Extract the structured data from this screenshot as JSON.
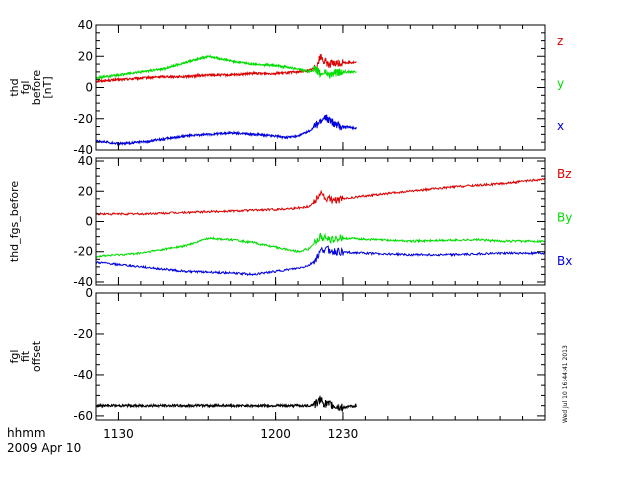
{
  "footer": {
    "time_format": "hhmm",
    "date": "2009 Apr 10",
    "stamp": "Wed Jul 10 16:44:41 2013"
  },
  "chart_data": [
    {
      "type": "line",
      "panel": "thd_fgl_before",
      "ylabel_lines": [
        "thd",
        "fgl",
        "before",
        "[nT]"
      ],
      "ylim": [
        -40,
        40
      ],
      "yticks": [
        40,
        20,
        0,
        -20,
        -40
      ],
      "xlim": [
        1120,
        1320
      ],
      "xticks": [
        1130,
        1200,
        1230
      ],
      "series": [
        {
          "name": "z",
          "color": "#dd0000",
          "x": [
            1120,
            1130,
            1140,
            1150,
            1160,
            1170,
            1180,
            1190,
            1200,
            1210,
            1215,
            1218,
            1220,
            1222,
            1224,
            1226,
            1230,
            1236
          ],
          "y": [
            4,
            5,
            6,
            7,
            7,
            8,
            8,
            9,
            9,
            10,
            11,
            13,
            20,
            16,
            15,
            15,
            16,
            16
          ]
        },
        {
          "name": "y",
          "color": "#00dd00",
          "x": [
            1120,
            1130,
            1140,
            1150,
            1160,
            1170,
            1180,
            1190,
            1200,
            1205,
            1210,
            1215,
            1218,
            1220,
            1222,
            1224,
            1226,
            1230,
            1236
          ],
          "y": [
            6,
            8,
            10,
            12,
            16,
            20,
            17,
            15,
            14,
            13,
            12,
            10,
            12,
            8,
            10,
            8,
            9,
            10,
            10
          ]
        },
        {
          "name": "x",
          "color": "#0000dd",
          "x": [
            1120,
            1130,
            1140,
            1150,
            1160,
            1170,
            1180,
            1190,
            1200,
            1205,
            1210,
            1215,
            1218,
            1220,
            1222,
            1224,
            1226,
            1230,
            1236
          ],
          "y": [
            -34,
            -36,
            -35,
            -33,
            -31,
            -30,
            -29,
            -30,
            -31,
            -32,
            -31,
            -28,
            -24,
            -22,
            -19,
            -21,
            -23,
            -25,
            -26
          ]
        }
      ]
    },
    {
      "type": "line",
      "panel": "thd_fgs_before",
      "ylabel_lines": [
        "thd_fgs_before"
      ],
      "ylim": [
        -42,
        42
      ],
      "yticks": [
        40,
        20,
        0,
        -20,
        -40
      ],
      "xlim": [
        1120,
        1320
      ],
      "xticks": [
        1130,
        1200,
        1230
      ],
      "series": [
        {
          "name": "Bz",
          "color": "#dd0000",
          "x": [
            1120,
            1140,
            1160,
            1180,
            1200,
            1210,
            1215,
            1218,
            1220,
            1222,
            1226,
            1240,
            1260,
            1280,
            1300,
            1320
          ],
          "y": [
            5,
            5,
            6,
            7,
            8,
            9,
            10,
            14,
            20,
            15,
            14,
            17,
            20,
            23,
            25,
            28
          ]
        },
        {
          "name": "By",
          "color": "#00dd00",
          "x": [
            1120,
            1140,
            1160,
            1170,
            1180,
            1190,
            1200,
            1210,
            1215,
            1218,
            1220,
            1224,
            1230,
            1260,
            1290,
            1300,
            1320
          ],
          "y": [
            -23,
            -21,
            -16,
            -11,
            -12,
            -14,
            -17,
            -20,
            -18,
            -13,
            -10,
            -12,
            -11,
            -13,
            -12,
            -13,
            -13
          ]
        },
        {
          "name": "Bx",
          "color": "#0000dd",
          "x": [
            1120,
            1140,
            1160,
            1180,
            1190,
            1200,
            1210,
            1215,
            1218,
            1220,
            1222,
            1226,
            1240,
            1260,
            1280,
            1300,
            1320
          ],
          "y": [
            -27,
            -30,
            -33,
            -34,
            -35,
            -33,
            -31,
            -29,
            -25,
            -20,
            -18,
            -20,
            -21,
            -22,
            -22,
            -21,
            -21
          ]
        }
      ]
    },
    {
      "type": "line",
      "panel": "fgl_fit_offset",
      "ylabel_lines": [
        "fgl",
        "fit",
        "offset"
      ],
      "ylim": [
        -62,
        0
      ],
      "yticks": [
        0,
        -20,
        -40,
        -60
      ],
      "xlim": [
        1120,
        1320
      ],
      "xticks": [
        1130,
        1200,
        1230
      ],
      "series": [
        {
          "name": "",
          "color": "#000000",
          "x": [
            1120,
            1140,
            1160,
            1180,
            1200,
            1210,
            1215,
            1218,
            1220,
            1222,
            1226,
            1230,
            1236
          ],
          "y": [
            -55,
            -55,
            -55,
            -55,
            -55,
            -55,
            -55,
            -54,
            -52,
            -54,
            -55,
            -56,
            -55
          ]
        }
      ]
    }
  ]
}
